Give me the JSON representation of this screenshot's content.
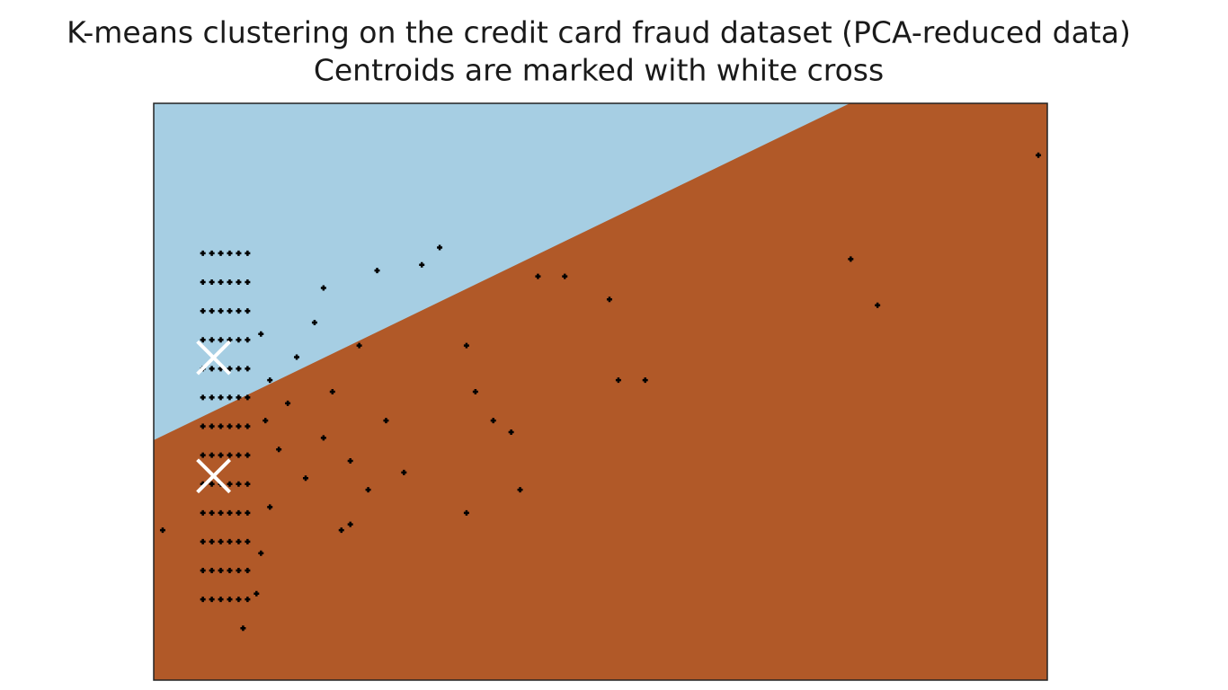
{
  "chart_data": {
    "type": "scatter",
    "title": "K-means clustering on the credit card fraud dataset (PCA-reduced data)",
    "subtitle": "Centroids are marked with white cross",
    "xlim": [
      0,
      100
    ],
    "ylim": [
      0,
      100
    ],
    "point_color": "#000000",
    "region_colors": [
      "#a6cee3",
      "#b15928"
    ],
    "boundary": {
      "x": [
        0,
        77.9
      ],
      "y": [
        41.6,
        100
      ]
    },
    "centroids": {
      "color": "#ffffff",
      "x": [
        6.7,
        6.7
      ],
      "y": [
        55.9,
        35.4
      ]
    },
    "x": [
      5.5,
      5.5,
      5.5,
      5.5,
      5.5,
      5.5,
      5.5,
      5.5,
      5.5,
      5.5,
      5.5,
      5.5,
      5.5,
      6.5,
      6.5,
      6.5,
      6.5,
      6.5,
      6.5,
      6.5,
      6.5,
      6.5,
      6.5,
      6.5,
      6.5,
      6.5,
      7.5,
      7.5,
      7.5,
      7.5,
      7.5,
      7.5,
      7.5,
      7.5,
      7.5,
      7.5,
      7.5,
      7.5,
      7.5,
      8.5,
      8.5,
      8.5,
      8.5,
      8.5,
      8.5,
      8.5,
      8.5,
      8.5,
      8.5,
      8.5,
      8.5,
      8.5,
      9.5,
      9.5,
      9.5,
      9.5,
      9.5,
      9.5,
      9.5,
      9.5,
      9.5,
      9.5,
      9.5,
      9.5,
      9.5,
      10.5,
      10.5,
      10.5,
      10.5,
      10.5,
      10.5,
      10.5,
      10.5,
      10.5,
      10.5,
      10.5,
      10.5,
      10.5,
      12,
      13,
      12.5,
      14,
      13,
      12,
      11.5,
      15,
      16,
      17,
      18,
      19,
      20,
      22,
      23,
      24,
      26,
      28,
      19,
      25,
      30,
      32,
      35,
      36,
      38,
      40,
      41,
      43,
      46,
      51,
      52,
      55,
      78,
      81,
      99,
      35,
      22,
      1,
      10,
      21
    ],
    "values": [
      14,
      19,
      24,
      29,
      34,
      39,
      44,
      49,
      54,
      59,
      64,
      69,
      74,
      14,
      19,
      24,
      29,
      34,
      39,
      44,
      49,
      54,
      59,
      64,
      69,
      74,
      14,
      19,
      24,
      29,
      34,
      39,
      44,
      49,
      54,
      59,
      64,
      69,
      74,
      14,
      19,
      24,
      29,
      34,
      39,
      44,
      49,
      54,
      59,
      64,
      69,
      74,
      14,
      19,
      24,
      29,
      34,
      39,
      44,
      49,
      54,
      59,
      64,
      69,
      74,
      14,
      19,
      24,
      29,
      34,
      39,
      44,
      49,
      54,
      59,
      64,
      69,
      74,
      60,
      52,
      45,
      40,
      30,
      22,
      15,
      48,
      56,
      35,
      62,
      42,
      50,
      38,
      58,
      33,
      45,
      36,
      68,
      71,
      72,
      75,
      58,
      50,
      45,
      43,
      33,
      70,
      70,
      66,
      52,
      52,
      73,
      65,
      91,
      29,
      27,
      26,
      9,
      26
    ]
  }
}
